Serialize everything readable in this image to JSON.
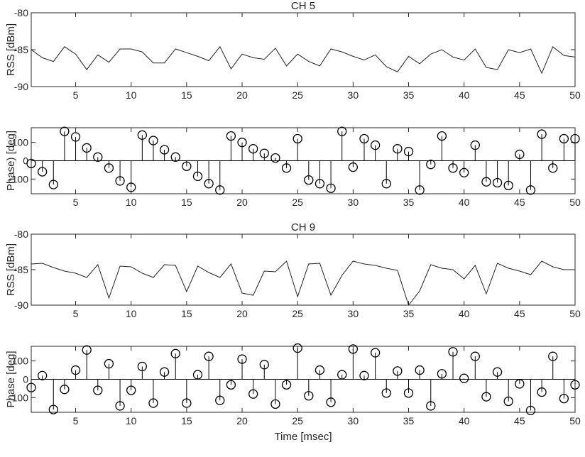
{
  "chart_data": [
    {
      "type": "line",
      "title": "CH 5",
      "xlabel": "",
      "ylabel": "RSS [dBm]",
      "xlim": [
        1,
        50
      ],
      "ylim": [
        -90,
        -80
      ],
      "xticks": [
        5,
        10,
        15,
        20,
        25,
        30,
        35,
        40,
        45,
        50
      ],
      "yticks": [
        -80,
        -85,
        -90
      ],
      "x": [
        1,
        2,
        3,
        4,
        5,
        6,
        7,
        8,
        9,
        10,
        11,
        12,
        13,
        14,
        15,
        16,
        17,
        18,
        19,
        20,
        21,
        22,
        23,
        24,
        25,
        26,
        27,
        28,
        29,
        30,
        31,
        32,
        33,
        34,
        35,
        36,
        37,
        38,
        39,
        40,
        41,
        42,
        43,
        44,
        45,
        46,
        47,
        48,
        49,
        50
      ],
      "values": [
        -85.0,
        -86.1,
        -86.6,
        -84.6,
        -85.6,
        -87.7,
        -85.7,
        -86.7,
        -84.9,
        -84.9,
        -85.3,
        -86.8,
        -86.8,
        -84.9,
        -85.4,
        -85.9,
        -86.5,
        -84.6,
        -87.6,
        -85.6,
        -86.1,
        -86.3,
        -84.8,
        -87.2,
        -85.6,
        -86.6,
        -87.2,
        -84.9,
        -85.3,
        -85.9,
        -86.4,
        -85.7,
        -87.3,
        -88.0,
        -85.9,
        -86.9,
        -85.6,
        -85.0,
        -86.0,
        -86.4,
        -84.9,
        -87.4,
        -87.7,
        -85.0,
        -85.4,
        -84.9,
        -88.2,
        -84.6,
        -85.8,
        -86.0
      ]
    },
    {
      "type": "stem",
      "title": "",
      "xlabel": "",
      "ylabel": "Phase) [deg]",
      "xlim": [
        1,
        50
      ],
      "ylim": [
        -180,
        180
      ],
      "xticks": [
        5,
        10,
        15,
        20,
        25,
        30,
        35,
        40,
        45,
        50
      ],
      "yticks": [
        100,
        0,
        -100
      ],
      "x": [
        1,
        2,
        3,
        4,
        5,
        6,
        7,
        8,
        9,
        10,
        11,
        12,
        13,
        14,
        15,
        16,
        17,
        18,
        19,
        20,
        21,
        22,
        23,
        24,
        25,
        26,
        27,
        28,
        29,
        30,
        31,
        32,
        33,
        34,
        35,
        36,
        37,
        38,
        39,
        40,
        41,
        42,
        43,
        44,
        45,
        46,
        47,
        48,
        49,
        50
      ],
      "values": [
        -15,
        -60,
        -130,
        160,
        130,
        70,
        20,
        -40,
        -110,
        -145,
        140,
        110,
        60,
        20,
        -30,
        -85,
        -125,
        -160,
        135,
        100,
        65,
        40,
        15,
        -40,
        120,
        -105,
        -125,
        -150,
        160,
        -35,
        120,
        85,
        -125,
        65,
        50,
        -160,
        -20,
        135,
        -40,
        -65,
        85,
        -115,
        -120,
        -135,
        35,
        -160,
        145,
        -40,
        120,
        120
      ]
    },
    {
      "type": "line",
      "title": "CH 9",
      "xlabel": "",
      "ylabel": "RSS [dBm]",
      "xlim": [
        1,
        50
      ],
      "ylim": [
        -90,
        -80
      ],
      "xticks": [
        5,
        10,
        15,
        20,
        25,
        30,
        35,
        40,
        45,
        50
      ],
      "yticks": [
        -80,
        -85,
        -90
      ],
      "x": [
        1,
        2,
        3,
        4,
        5,
        6,
        7,
        8,
        9,
        10,
        11,
        12,
        13,
        14,
        15,
        16,
        17,
        18,
        19,
        20,
        21,
        22,
        23,
        24,
        25,
        26,
        27,
        28,
        29,
        30,
        31,
        32,
        33,
        34,
        35,
        36,
        37,
        38,
        39,
        40,
        41,
        42,
        43,
        44,
        45,
        46,
        47,
        48,
        49,
        50
      ],
      "values": [
        -84.2,
        -84.1,
        -84.7,
        -85.2,
        -85.5,
        -86.1,
        -84.3,
        -89.0,
        -84.5,
        -84.6,
        -85.5,
        -86.1,
        -84.3,
        -84.4,
        -88.1,
        -84.5,
        -85.4,
        -86.1,
        -84.2,
        -88.3,
        -88.6,
        -85.2,
        -85.3,
        -83.8,
        -88.8,
        -84.2,
        -84.1,
        -88.6,
        -85.8,
        -83.8,
        -84.2,
        -84.4,
        -84.8,
        -85.1,
        -90.0,
        -88.0,
        -84.3,
        -84.8,
        -85.0,
        -86.3,
        -84.4,
        -88.4,
        -84.1,
        -84.8,
        -85.2,
        -85.7,
        -83.8,
        -84.6,
        -85.0,
        -85.0
      ]
    },
    {
      "type": "stem",
      "title": "",
      "xlabel": "Time [msec]",
      "ylabel": "Phase [deg]",
      "xlim": [
        1,
        50
      ],
      "ylim": [
        -180,
        180
      ],
      "xticks": [
        5,
        10,
        15,
        20,
        25,
        30,
        35,
        40,
        45,
        50
      ],
      "yticks": [
        100,
        0,
        -100
      ],
      "x": [
        1,
        2,
        3,
        4,
        5,
        6,
        7,
        8,
        9,
        10,
        11,
        12,
        13,
        14,
        15,
        16,
        17,
        18,
        19,
        20,
        21,
        22,
        23,
        24,
        25,
        26,
        27,
        28,
        29,
        30,
        31,
        32,
        33,
        34,
        35,
        36,
        37,
        38,
        39,
        40,
        41,
        42,
        43,
        44,
        45,
        46,
        47,
        48,
        49,
        50
      ],
      "values": [
        -45,
        20,
        -165,
        -55,
        50,
        160,
        -60,
        85,
        -145,
        -60,
        70,
        -130,
        40,
        140,
        -130,
        25,
        125,
        -115,
        -30,
        110,
        -80,
        80,
        -135,
        -30,
        170,
        -90,
        50,
        -125,
        25,
        165,
        20,
        145,
        -75,
        45,
        -75,
        50,
        -145,
        30,
        150,
        5,
        125,
        -95,
        40,
        -120,
        -25,
        -170,
        -70,
        125,
        -105,
        -30
      ]
    }
  ]
}
